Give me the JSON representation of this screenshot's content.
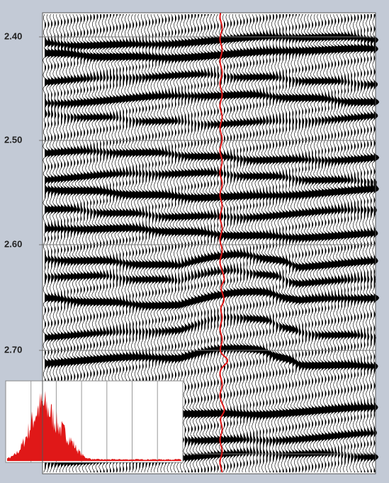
{
  "time_axis": {
    "labels": [
      "2.40",
      "2.50",
      "2.60",
      "2.70"
    ]
  }
}
